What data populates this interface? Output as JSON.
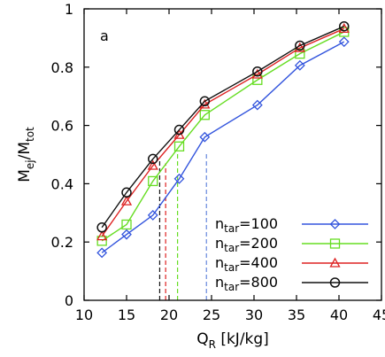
{
  "chart_data": {
    "type": "line",
    "panel_label": "a",
    "xlabel": {
      "main": "Q",
      "sub": "R",
      "rest": " [kJ/kg]"
    },
    "ylabel": {
      "main": "M",
      "sub1": "ej",
      "mid": "/M",
      "sub2": "tot"
    },
    "xlim": [
      10,
      45
    ],
    "ylim": [
      0,
      1
    ],
    "xticks": [
      10,
      15,
      20,
      25,
      30,
      35,
      40,
      45
    ],
    "yticks": [
      0,
      0.2,
      0.4,
      0.6,
      0.8,
      1
    ],
    "ytick_labels": [
      "0",
      "0.2",
      "0.4",
      "0.6",
      "0.8",
      "1"
    ],
    "grid": false,
    "legend_position": "bottom-right",
    "x": [
      12.1,
      15.0,
      18.1,
      21.2,
      24.2,
      27.3,
      30.4,
      35.4,
      40.6
    ],
    "series": [
      {
        "label": {
          "main": "n",
          "sub": "tar",
          "rest": "=100"
        },
        "color": "#3355dd",
        "marker": "diamond",
        "values": [
          0.163,
          0.226,
          0.292,
          0.417,
          0.56,
          null,
          0.67,
          0.806,
          0.887
        ]
      },
      {
        "label": {
          "main": "n",
          "sub": "tar",
          "rest": "=200"
        },
        "color": "#66dd22",
        "marker": "square",
        "values": [
          0.204,
          0.26,
          0.409,
          0.528,
          0.636,
          null,
          0.756,
          0.846,
          0.921
        ]
      },
      {
        "label": {
          "main": "n",
          "sub": "tar",
          "rest": "=400"
        },
        "color": "#dd2222",
        "marker": "triangle",
        "values": [
          0.22,
          0.34,
          0.462,
          0.568,
          0.672,
          null,
          0.775,
          0.866,
          0.932
        ]
      },
      {
        "label": {
          "main": "n",
          "sub": "tar",
          "rest": "=800"
        },
        "color": "#111111",
        "marker": "circle",
        "values": [
          0.25,
          0.37,
          0.485,
          0.585,
          0.683,
          null,
          0.785,
          0.874,
          0.94
        ]
      }
    ],
    "vertical_lines": [
      {
        "x": 18.9,
        "y_top": 0.49,
        "color": "#111111"
      },
      {
        "x": 19.6,
        "y_top": 0.47,
        "color": "#dd2222"
      },
      {
        "x": 21.0,
        "y_top": 0.51,
        "color": "#66dd22"
      },
      {
        "x": 24.4,
        "y_top": 0.51,
        "color": "#6688dd"
      }
    ]
  }
}
